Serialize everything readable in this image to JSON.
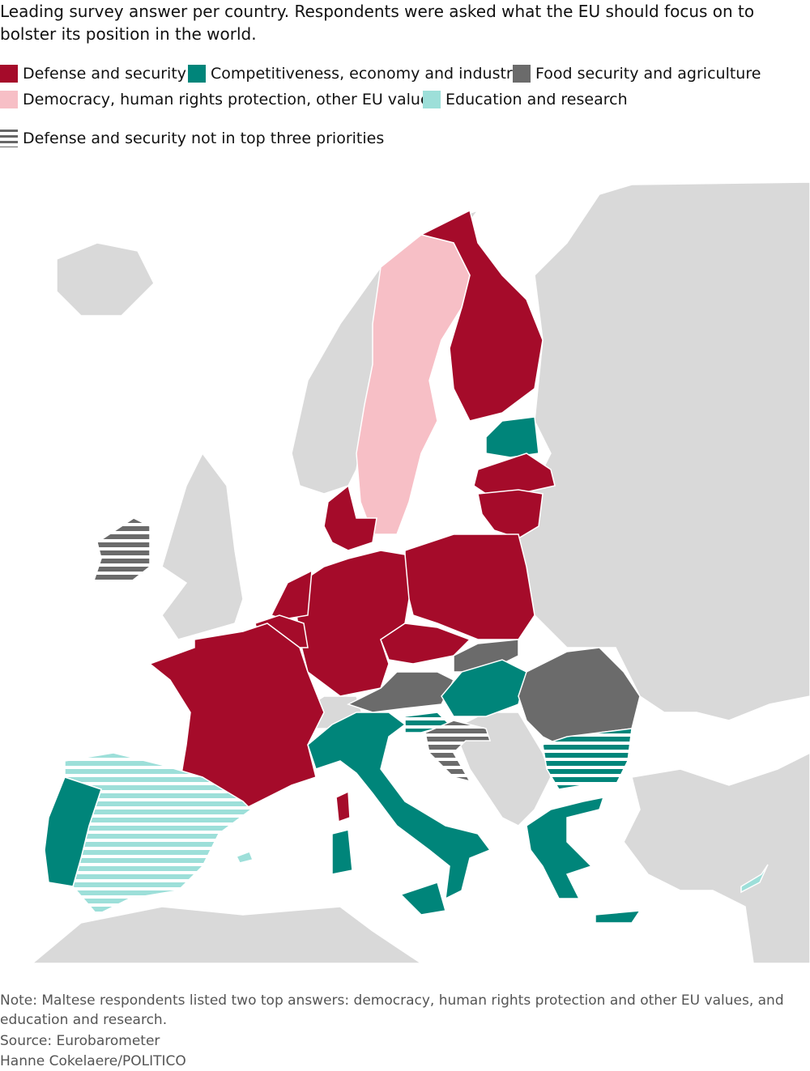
{
  "title": "Leading survey answer per country. Respondents were asked what the EU should focus on to bolster its position in the world.",
  "legend": [
    {
      "label": "Defense and security",
      "color": "#a50b2a"
    },
    {
      "label": "Competitiveness, economy and industry",
      "color": "#00857a"
    },
    {
      "label": "Food security and agriculture",
      "color": "#6b6b6b"
    },
    {
      "label": "Democracy, human rights protection, other EU values",
      "color": "#f7bfc6"
    },
    {
      "label": "Education and research",
      "color": "#9ddfd9"
    }
  ],
  "hatch_legend": "Defense and security not in top three priorities",
  "note": "Note: Maltese respondents listed two top answers: democracy, human rights protection and other EU values, and education and research.",
  "source": "Source: Eurobarometer",
  "credit": "Hanne Cokelaere/POLITICO"
}
